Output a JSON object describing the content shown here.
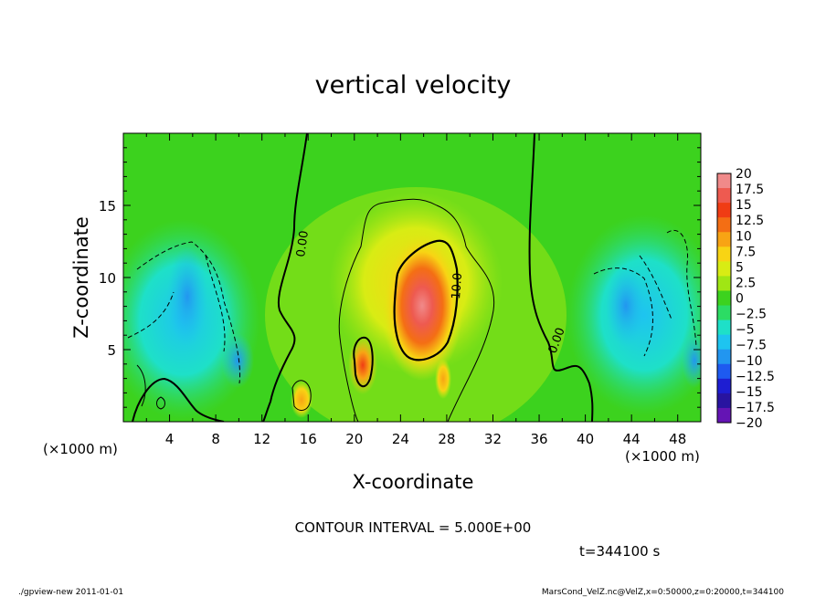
{
  "chart_data": {
    "type": "heatmap",
    "title": "vertical velocity",
    "xlabel": "X-coordinate",
    "ylabel": "Z-coordinate",
    "x_unit_left": "(×1000 m)",
    "x_unit_right": "(×1000 m)",
    "xlim": [
      0,
      50
    ],
    "ylim": [
      0,
      20
    ],
    "x_ticks": [
      "4",
      "8",
      "12",
      "16",
      "20",
      "24",
      "28",
      "32",
      "36",
      "40",
      "44",
      "48"
    ],
    "y_ticks": [
      "5",
      "10",
      "15"
    ],
    "colorbar_labels": [
      "20",
      "17.5",
      "15",
      "12.5",
      "10",
      "7.5",
      "5",
      "2.5",
      "0",
      "−2.5",
      "−5",
      "−7.5",
      "−10",
      "−12.5",
      "−15",
      "−17.5",
      "−20"
    ],
    "colorbar_colors": [
      "#f08a8a",
      "#ee5a50",
      "#f03c14",
      "#f46e14",
      "#f8a414",
      "#f8d414",
      "#d8ec14",
      "#a0e614",
      "#3cd21e",
      "#2cdc64",
      "#1ee0c8",
      "#1ec4f0",
      "#2296f0",
      "#1e5af0",
      "#1e1ed2",
      "#2814a0",
      "#6414b4"
    ],
    "contour_labels": [
      "0.00",
      "10.0",
      "0.00"
    ],
    "contour_interval": "CONTOUR INTERVAL = 5.000E+00",
    "time": "t=344100 s",
    "legend_placement": "right"
  },
  "footer": {
    "left": "./gpview-new  2011-01-01",
    "right": "MarsCond_VelZ.nc@VelZ,x=0:50000,z=0:20000,t=344100"
  }
}
